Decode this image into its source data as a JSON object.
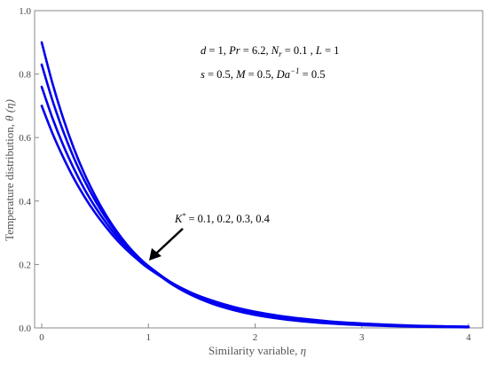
{
  "chart_data": {
    "type": "line",
    "xlabel": "Similarity variable, η",
    "ylabel": "Temperature distribution, θ (η)",
    "xlim": [
      0,
      4
    ],
    "ylim": [
      0,
      1
    ],
    "xticks": [
      "0",
      "1",
      "2",
      "3",
      "4"
    ],
    "yticks": [
      "0.0",
      "0.2",
      "0.4",
      "0.6",
      "0.8",
      "1.0"
    ],
    "grid": false,
    "line_color": "#0000ee",
    "annotation_lines": [
      "d = 1, Pr = 6.2, Nr = 0.1 , L = 1",
      "s = 0.5, M = 0.5, Da−1 = 0.5"
    ],
    "arrow_label": "K* = 0.1, 0.2, 0.3, 0.4",
    "x": [
      0,
      0.1,
      0.2,
      0.3,
      0.4,
      0.5,
      0.6,
      0.7,
      0.8,
      0.9,
      1.0,
      1.2,
      1.4,
      1.6,
      1.8,
      2.0,
      2.25,
      2.5,
      2.75,
      3.0,
      3.25,
      3.5,
      3.75,
      4.0
    ],
    "series": [
      {
        "values": [
          0.9,
          0.772,
          0.662,
          0.567,
          0.486,
          0.417,
          0.357,
          0.306,
          0.262,
          0.225,
          0.193,
          0.142,
          0.104,
          0.076,
          0.056,
          0.041,
          0.028,
          0.019,
          0.013,
          0.009,
          0.006,
          0.004,
          0.003,
          0.002
        ]
      },
      {
        "values": [
          0.83,
          0.718,
          0.621,
          0.537,
          0.465,
          0.402,
          0.348,
          0.301,
          0.26,
          0.225,
          0.195,
          0.146,
          0.109,
          0.082,
          0.061,
          0.046,
          0.032,
          0.022,
          0.016,
          0.011,
          0.008,
          0.005,
          0.004,
          0.003
        ]
      },
      {
        "values": [
          0.76,
          0.662,
          0.577,
          0.503,
          0.438,
          0.382,
          0.333,
          0.29,
          0.253,
          0.22,
          0.192,
          0.146,
          0.111,
          0.084,
          0.064,
          0.049,
          0.035,
          0.025,
          0.018,
          0.013,
          0.009,
          0.006,
          0.005,
          0.003
        ]
      },
      {
        "values": [
          0.7,
          0.614,
          0.539,
          0.472,
          0.414,
          0.363,
          0.319,
          0.279,
          0.245,
          0.215,
          0.188,
          0.145,
          0.111,
          0.086,
          0.066,
          0.051,
          0.037,
          0.027,
          0.019,
          0.014,
          0.01,
          0.007,
          0.005,
          0.004
        ]
      }
    ]
  }
}
